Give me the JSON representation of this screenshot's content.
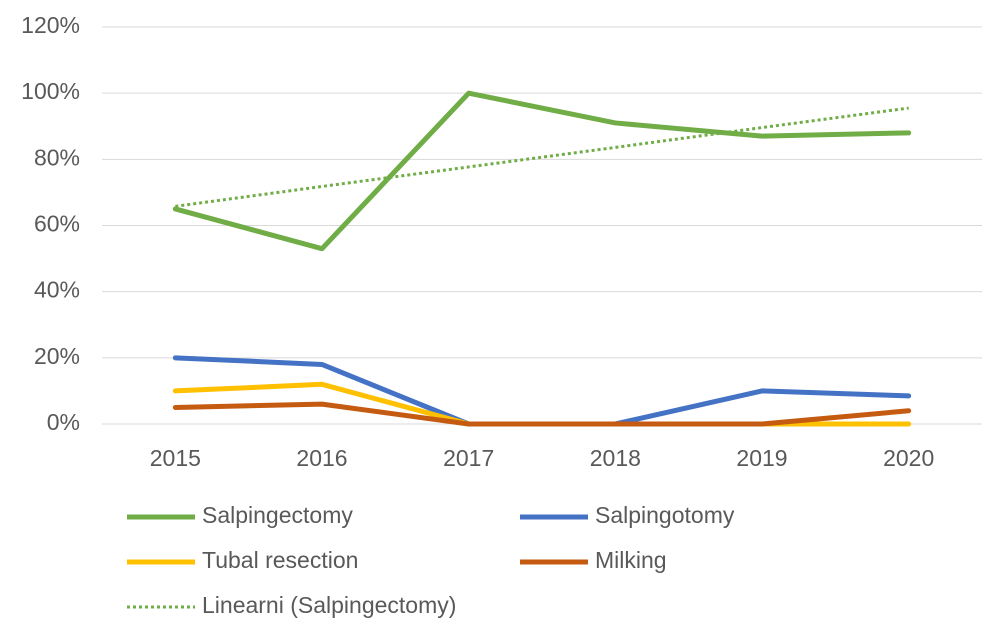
{
  "chart_data": {
    "type": "line",
    "categories": [
      "2015",
      "2016",
      "2017",
      "2018",
      "2019",
      "2020"
    ],
    "series": [
      {
        "name": "Salpingectomy",
        "color": "#70ad47",
        "values": [
          65,
          53,
          100,
          91,
          87,
          88
        ]
      },
      {
        "name": "Salpingotomy",
        "color": "#4472c4",
        "values": [
          20,
          18,
          0,
          0,
          10,
          8.5
        ]
      },
      {
        "name": "Tubal resection",
        "color": "#ffc000",
        "values": [
          10,
          12,
          0,
          0,
          0,
          0
        ]
      },
      {
        "name": "Milking",
        "color": "#c55a11",
        "values": [
          5,
          6,
          0,
          0,
          0,
          4
        ]
      },
      {
        "name": "Linearni (Salpingectomy)",
        "color": "#70ad47",
        "dashed": true,
        "values": [
          65.8,
          71.8,
          77.7,
          83.6,
          89.6,
          95.5
        ]
      }
    ],
    "ylim": [
      0,
      120
    ],
    "yticks": [
      {
        "value": 0,
        "label": "0%"
      },
      {
        "value": 20,
        "label": "20%"
      },
      {
        "value": 40,
        "label": "40%"
      },
      {
        "value": 60,
        "label": "60%"
      },
      {
        "value": 80,
        "label": "80%"
      },
      {
        "value": 100,
        "label": "100%"
      },
      {
        "value": 120,
        "label": "120%"
      }
    ],
    "grid": true
  }
}
